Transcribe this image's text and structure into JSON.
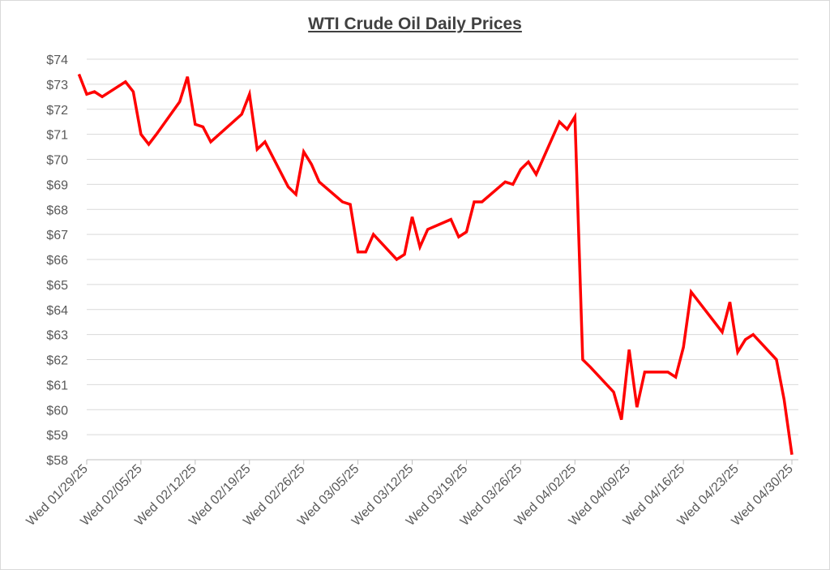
{
  "chart_data": {
    "type": "line",
    "title": "WTI Crude Oil Daily Prices",
    "xlabel": "",
    "ylabel": "",
    "ylim": [
      58,
      74
    ],
    "y_tick_labels": [
      "$58",
      "$59",
      "$60",
      "$61",
      "$62",
      "$63",
      "$64",
      "$65",
      "$66",
      "$67",
      "$68",
      "$69",
      "$70",
      "$71",
      "$72",
      "$73",
      "$74"
    ],
    "x_tick_labels": [
      "Wed 01/29/25",
      "Wed 02/05/25",
      "Wed 02/12/25",
      "Wed 02/19/25",
      "Wed 02/26/25",
      "Wed 03/05/25",
      "Wed 03/12/25",
      "Wed 03/19/25",
      "Wed 03/26/25",
      "Wed 04/02/25",
      "Wed 04/09/25",
      "Wed 04/16/25",
      "Wed 04/23/25",
      "Wed 04/30/25"
    ],
    "x_tick_dates": [
      "2025-01-29",
      "2025-02-05",
      "2025-02-12",
      "2025-02-19",
      "2025-02-26",
      "2025-03-05",
      "2025-03-12",
      "2025-03-19",
      "2025-03-26",
      "2025-04-02",
      "2025-04-09",
      "2025-04-16",
      "2025-04-23",
      "2025-04-30"
    ],
    "grid": true,
    "line_color": "#ff0000",
    "series": [
      {
        "x": [
          "2025-01-28",
          "2025-01-29",
          "2025-01-30",
          "2025-01-31",
          "2025-02-03",
          "2025-02-04",
          "2025-02-05",
          "2025-02-06",
          "2025-02-07",
          "2025-02-10",
          "2025-02-11",
          "2025-02-12",
          "2025-02-13",
          "2025-02-14",
          "2025-02-18",
          "2025-02-19",
          "2025-02-20",
          "2025-02-21",
          "2025-02-24",
          "2025-02-25",
          "2025-02-26",
          "2025-02-27",
          "2025-02-28",
          "2025-03-03",
          "2025-03-04",
          "2025-03-05",
          "2025-03-06",
          "2025-03-07",
          "2025-03-10",
          "2025-03-11",
          "2025-03-12",
          "2025-03-13",
          "2025-03-14",
          "2025-03-17",
          "2025-03-18",
          "2025-03-19",
          "2025-03-20",
          "2025-03-21",
          "2025-03-24",
          "2025-03-25",
          "2025-03-26",
          "2025-03-27",
          "2025-03-28",
          "2025-03-31",
          "2025-04-01",
          "2025-04-02",
          "2025-04-03",
          "2025-04-04",
          "2025-04-07",
          "2025-04-08",
          "2025-04-09",
          "2025-04-10",
          "2025-04-11",
          "2025-04-14",
          "2025-04-15",
          "2025-04-16",
          "2025-04-17",
          "2025-04-21",
          "2025-04-22",
          "2025-04-23",
          "2025-04-24",
          "2025-04-25",
          "2025-04-28",
          "2025-04-29",
          "2025-04-30"
        ],
        "values": [
          73.4,
          72.6,
          72.7,
          72.5,
          73.1,
          72.7,
          71.0,
          70.6,
          71.0,
          72.3,
          73.3,
          71.4,
          71.3,
          70.7,
          71.8,
          72.6,
          70.4,
          70.7,
          68.9,
          68.6,
          70.3,
          69.8,
          69.1,
          68.3,
          68.2,
          66.3,
          66.3,
          67.0,
          66.0,
          66.2,
          67.7,
          66.5,
          67.2,
          67.6,
          66.9,
          67.1,
          68.3,
          68.3,
          69.1,
          69.0,
          69.6,
          69.9,
          69.4,
          71.5,
          71.2,
          71.7,
          62.0,
          61.7,
          60.7,
          59.6,
          62.4,
          60.1,
          61.5,
          61.5,
          61.3,
          62.5,
          64.7,
          63.1,
          64.3,
          62.3,
          62.8,
          63.0,
          62.0,
          60.4,
          58.2
        ]
      }
    ]
  }
}
